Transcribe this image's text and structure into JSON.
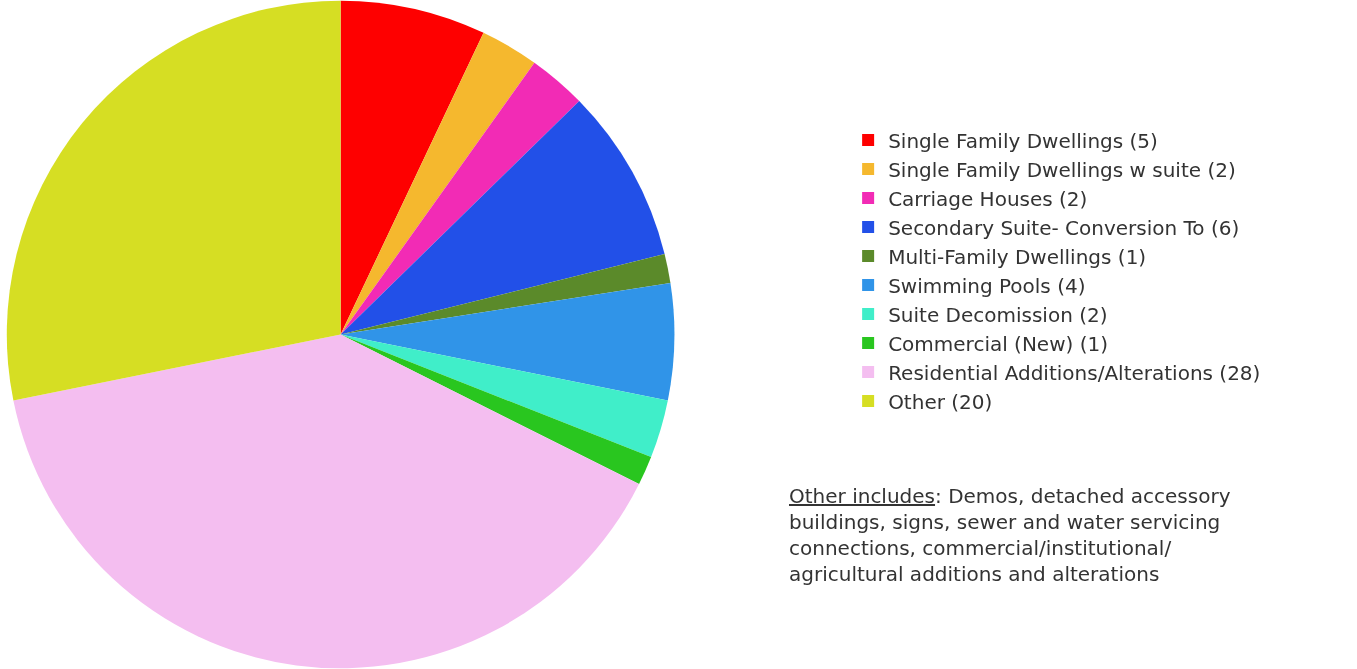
{
  "chart_data": {
    "type": "pie",
    "categories": [
      "Single Family Dwellings (5)",
      "Single Family Dwellings w suite (2)",
      "Carriage Houses (2)",
      "Secondary Suite- Conversion To (6)",
      "Multi-Family Dwellings (1)",
      "Swimming Pools (4)",
      "Suite Decomission (2)",
      "Commercial (New) (1)",
      "Residential Additions/Alterations (28)",
      "Other (20)"
    ],
    "values": [
      5,
      2,
      2,
      6,
      1,
      4,
      2,
      1,
      28,
      20
    ],
    "colors": [
      "#fe0000",
      "#f5b82e",
      "#f22bb5",
      "#2250e8",
      "#5b8a2a",
      "#3094e8",
      "#40eec9",
      "#29c61f",
      "#f4bef0",
      "#d6de23"
    ],
    "legend": "right",
    "annotations": [
      "Other includes: Demos, detached accessory buildings, signs, sewer and water servicing connections, commercial/institutional/ agricultural additions and alterations"
    ]
  }
}
